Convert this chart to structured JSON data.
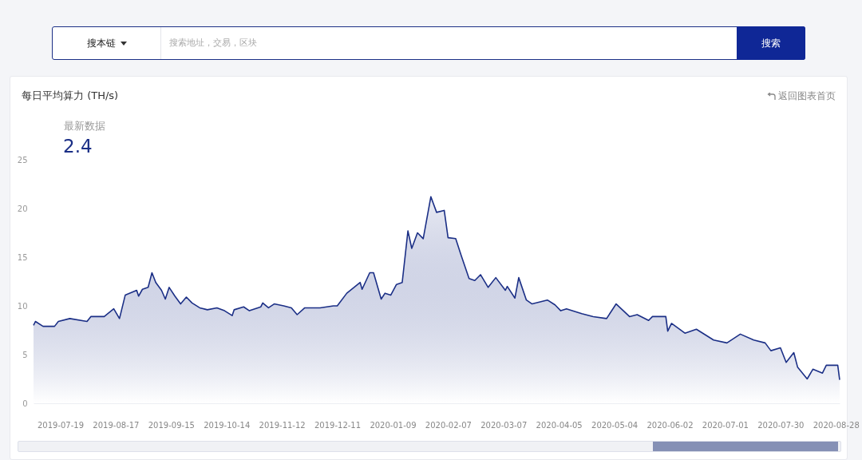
{
  "chart_data": {
    "type": "area",
    "title": "每日平均算力 (TH/s)",
    "annotations": [
      "搜本链",
      "搜索地址，交易，区块",
      "搜索",
      "返回图表首页",
      "最新数据",
      "2.4"
    ],
    "x": [
      "2019-07-05",
      "2019-07-06",
      "2019-07-10",
      "2019-07-16",
      "2019-07-18",
      "2019-07-24",
      "2019-08-02",
      "2019-08-04",
      "2019-08-11",
      "2019-08-16",
      "2019-08-19",
      "2019-08-22",
      "2019-08-28",
      "2019-08-29",
      "2019-08-31",
      "2019-09-03",
      "2019-09-05",
      "2019-09-07",
      "2019-09-10",
      "2019-09-12",
      "2019-09-14",
      "2019-09-17",
      "2019-09-20",
      "2019-09-23",
      "2019-09-26",
      "2019-09-30",
      "2019-10-04",
      "2019-10-09",
      "2019-10-13",
      "2019-10-17",
      "2019-10-18",
      "2019-10-23",
      "2019-10-26",
      "2019-11-01",
      "2019-11-02",
      "2019-11-05",
      "2019-11-08",
      "2019-11-13",
      "2019-11-17",
      "2019-11-20",
      "2019-11-24",
      "2019-12-02",
      "2019-12-09",
      "2019-12-11",
      "2019-12-16",
      "2019-12-23",
      "2019-12-24",
      "2019-12-28",
      "2019-12-30",
      "2020-01-03",
      "2020-01-05",
      "2020-01-08",
      "2020-01-11",
      "2020-01-14",
      "2020-01-17",
      "2020-01-19",
      "2020-01-22",
      "2020-01-25",
      "2020-01-29",
      "2020-02-01",
      "2020-02-05",
      "2020-02-07",
      "2020-02-11",
      "2020-02-14",
      "2020-02-18",
      "2020-02-21",
      "2020-02-24",
      "2020-02-28",
      "2020-03-03",
      "2020-03-08",
      "2020-03-09",
      "2020-03-13",
      "2020-03-15",
      "2020-03-19",
      "2020-03-22",
      "2020-03-30",
      "2020-04-03",
      "2020-04-06",
      "2020-04-09",
      "2020-04-17",
      "2020-04-23",
      "2020-04-30",
      "2020-05-05",
      "2020-05-12",
      "2020-05-16",
      "2020-05-22",
      "2020-05-24",
      "2020-05-31",
      "2020-06-01",
      "2020-06-03",
      "2020-06-10",
      "2020-06-16",
      "2020-06-25",
      "2020-07-02",
      "2020-07-09",
      "2020-07-16",
      "2020-07-22",
      "2020-07-25",
      "2020-07-30",
      "2020-08-02",
      "2020-08-06",
      "2020-08-08",
      "2020-08-13",
      "2020-08-16",
      "2020-08-21",
      "2020-08-23",
      "2020-08-29",
      "2020-08-30"
    ],
    "series": [
      {
        "color": "#1b2f86",
        "values": [
          8.0,
          8.4,
          7.9,
          7.9,
          8.4,
          8.7,
          8.4,
          8.9,
          8.9,
          9.7,
          8.7,
          11.1,
          11.6,
          11.0,
          11.7,
          11.9,
          13.4,
          12.4,
          11.6,
          10.7,
          11.9,
          11.0,
          10.2,
          10.9,
          10.3,
          9.8,
          9.6,
          9.8,
          9.5,
          9.0,
          9.6,
          9.9,
          9.5,
          9.9,
          10.3,
          9.8,
          10.2,
          10.0,
          9.8,
          9.1,
          9.8,
          9.8,
          10.0,
          10.0,
          11.3,
          12.4,
          11.7,
          13.4,
          13.4,
          10.7,
          11.3,
          11.1,
          12.2,
          12.4,
          17.7,
          15.9,
          17.5,
          16.9,
          21.2,
          19.6,
          19.8,
          17.0,
          16.9,
          15.1,
          12.8,
          12.6,
          13.2,
          11.9,
          12.9,
          11.6,
          12.0,
          10.8,
          12.9,
          10.6,
          10.2,
          10.6,
          10.1,
          9.5,
          9.7,
          9.2,
          8.9,
          8.7,
          10.2,
          8.9,
          9.1,
          8.5,
          8.9,
          8.9,
          7.4,
          8.2,
          7.2,
          7.6,
          6.5,
          6.2,
          7.1,
          6.5,
          6.2,
          5.4,
          5.7,
          4.2,
          5.2,
          3.7,
          2.5,
          3.5,
          3.1,
          3.9,
          3.9,
          2.4
        ]
      }
    ],
    "xlim": [
      "2019-07-05",
      "2020-08-30"
    ],
    "xticks": [
      "2019-07-19",
      "2019-08-17",
      "2019-09-15",
      "2019-10-14",
      "2019-11-12",
      "2019-12-11",
      "2020-01-09",
      "2020-02-07",
      "2020-03-07",
      "2020-04-05",
      "2020-05-04",
      "2020-06-02",
      "2020-07-01",
      "2020-07-30",
      "2020-08-28"
    ],
    "ylim": [
      0,
      25
    ],
    "yticks": [
      0,
      5,
      10,
      15,
      20,
      25
    ],
    "grid": false
  }
}
